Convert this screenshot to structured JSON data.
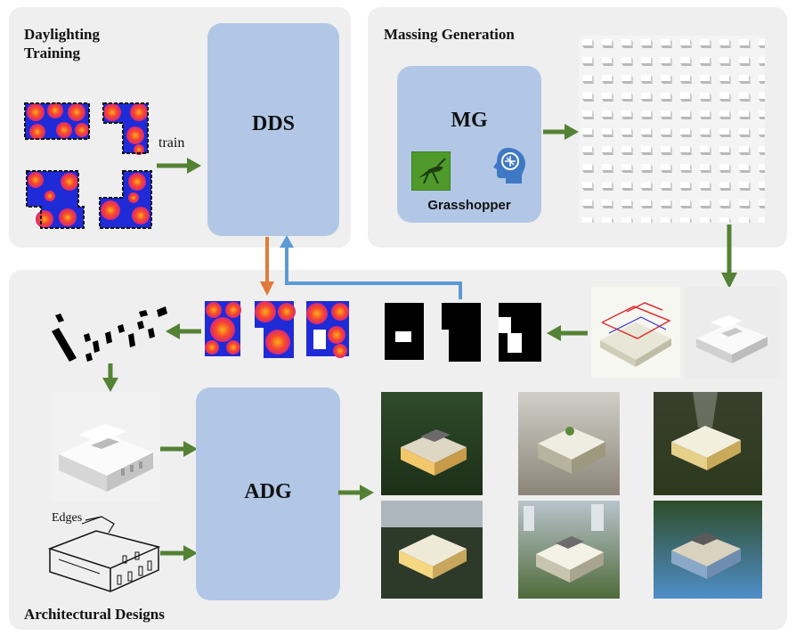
{
  "panels": {
    "daylighting": {
      "title_line1": "Daylighting",
      "title_line2": "Training"
    },
    "massing": {
      "title": "Massing Generation"
    },
    "architectural": {
      "title": "Architectural Designs"
    }
  },
  "blocks": {
    "dds": "DDS",
    "mg": "MG",
    "adg": "ADG"
  },
  "labels": {
    "train": "train",
    "grasshopper": "Grasshopper",
    "edges": "Edges"
  },
  "colors": {
    "panel_bg": "#efefef",
    "block_fill": "#b2c7e6",
    "green_arrow": "#548235",
    "orange_arrow": "#e07b39",
    "blue_arrow": "#5b9bd5",
    "heat_blue": "#1f2bd6",
    "heat_red": "#f7382a",
    "heat_orange": "#ff9a1f"
  }
}
